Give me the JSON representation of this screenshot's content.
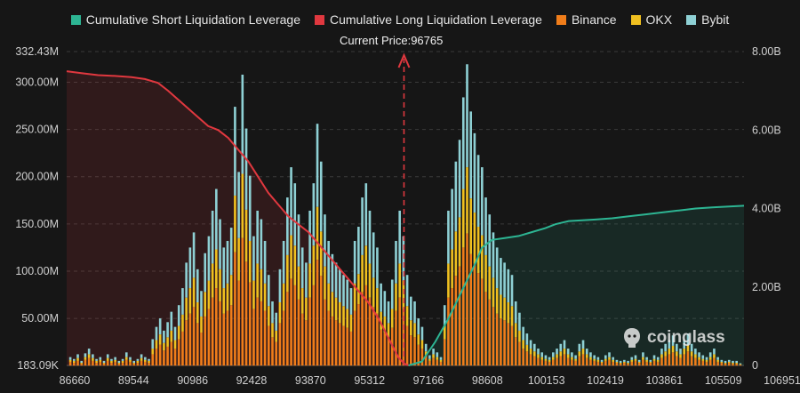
{
  "legend": {
    "short": "Cumulative Short Liquidation Leverage",
    "long": "Cumulative Long Liquidation Leverage",
    "binance": "Binance",
    "okx": "OKX",
    "bybit": "Bybit"
  },
  "current_price_label": "Current Price:96765",
  "watermark": "coinglass",
  "colors": {
    "short": "#2db593",
    "long": "#e0383f",
    "binance": "#f07d1a",
    "okx": "#f0c020",
    "bybit": "#8ed0d4",
    "background": "#161616"
  },
  "chart_data": {
    "type": "bar",
    "x_tick_labels": [
      "86660",
      "89544",
      "90986",
      "92428",
      "93870",
      "95312",
      "97166",
      "98608",
      "100153",
      "102419",
      "103861",
      "105509",
      "106951"
    ],
    "y_left_tick_labels": [
      "183.09K",
      "50.00M",
      "100.00M",
      "150.00M",
      "200.00M",
      "250.00M",
      "300.00M",
      "332.43M"
    ],
    "y_right_tick_labels": [
      "0",
      "2.00B",
      "4.00B",
      "6.00B",
      "8.00B"
    ],
    "ylim_left": [
      0.18309,
      332.43
    ],
    "ylim_right": [
      0,
      8
    ],
    "x_range": [
      86660,
      106951
    ],
    "current_price": 96765,
    "grid": "horizontal",
    "legend_position": "top",
    "series": [
      {
        "name": "Cumulative Short Liquidation Leverage",
        "type": "area-line",
        "axis": "right",
        "points": [
          [
            96900,
            0
          ],
          [
            97300,
            0.1
          ],
          [
            97700,
            0.6
          ],
          [
            98100,
            1.2
          ],
          [
            98500,
            1.9
          ],
          [
            98900,
            2.6
          ],
          [
            99100,
            3.0
          ],
          [
            99400,
            3.2
          ],
          [
            99800,
            3.25
          ],
          [
            100200,
            3.3
          ],
          [
            100600,
            3.4
          ],
          [
            101000,
            3.5
          ],
          [
            101300,
            3.6
          ],
          [
            101700,
            3.68
          ],
          [
            102100,
            3.7
          ],
          [
            102500,
            3.72
          ],
          [
            103000,
            3.75
          ],
          [
            103500,
            3.8
          ],
          [
            104000,
            3.85
          ],
          [
            104500,
            3.9
          ],
          [
            105000,
            3.95
          ],
          [
            105500,
            4.0
          ],
          [
            106000,
            4.03
          ],
          [
            106500,
            4.05
          ],
          [
            106951,
            4.07
          ]
        ]
      },
      {
        "name": "Cumulative Long Liquidation Leverage",
        "type": "area-line",
        "axis": "right",
        "points": [
          [
            86660,
            7.5
          ],
          [
            87100,
            7.45
          ],
          [
            87600,
            7.4
          ],
          [
            88100,
            7.38
          ],
          [
            88600,
            7.35
          ],
          [
            89000,
            7.3
          ],
          [
            89400,
            7.2
          ],
          [
            89700,
            7.0
          ],
          [
            90100,
            6.7
          ],
          [
            90500,
            6.4
          ],
          [
            90900,
            6.1
          ],
          [
            91200,
            6.0
          ],
          [
            91500,
            5.8
          ],
          [
            91800,
            5.5
          ],
          [
            92100,
            5.2
          ],
          [
            92400,
            4.8
          ],
          [
            92700,
            4.4
          ],
          [
            93000,
            4.1
          ],
          [
            93300,
            3.8
          ],
          [
            93600,
            3.6
          ],
          [
            93900,
            3.4
          ],
          [
            94200,
            3.1
          ],
          [
            94500,
            2.8
          ],
          [
            94800,
            2.5
          ],
          [
            95100,
            2.2
          ],
          [
            95400,
            1.9
          ],
          [
            95700,
            1.6
          ],
          [
            96000,
            1.2
          ],
          [
            96300,
            0.7
          ],
          [
            96600,
            0.2
          ],
          [
            96765,
            0.05
          ],
          [
            96900,
            0
          ]
        ]
      },
      {
        "name": "Binance",
        "type": "stacked-bar",
        "axis": "left",
        "values": [
          4,
          3,
          5,
          2,
          6,
          8,
          5,
          3,
          4,
          2,
          5,
          3,
          4,
          2,
          3,
          6,
          4,
          2,
          3,
          5,
          4,
          3,
          12,
          18,
          22,
          16,
          20,
          25,
          18,
          28,
          36,
          48,
          55,
          62,
          45,
          35,
          52,
          60,
          72,
          82,
          68,
          55,
          58,
          64,
          120,
          90,
          135,
          110,
          88,
          60,
          72,
          68,
          58,
          42,
          30,
          25,
          45,
          58,
          78,
          92,
          85,
          70,
          55,
          48,
          72,
          85,
          112,
          95,
          70,
          58,
          52,
          48,
          45,
          42,
          40,
          36,
          58,
          65,
          78,
          85,
          72,
          62,
          55,
          38,
          35,
          30,
          40,
          58,
          72,
          60,
          42,
          32,
          30,
          22,
          18,
          10,
          5,
          8,
          6,
          4,
          28,
          72,
          82,
          95,
          105,
          125,
          140,
          118,
          108,
          98,
          92,
          78,
          70,
          62,
          55,
          50,
          48,
          45,
          42,
          30,
          25,
          18,
          15,
          12,
          10,
          8,
          6,
          5,
          4,
          6,
          8,
          10,
          12,
          8,
          6,
          5,
          10,
          12,
          8,
          6,
          5,
          4,
          3,
          5,
          6,
          4,
          3,
          2,
          3,
          2,
          4,
          5,
          3,
          6,
          4,
          3,
          5,
          4,
          8,
          10,
          12,
          14,
          10,
          8,
          12,
          15,
          10,
          8,
          6,
          5,
          4,
          6,
          8,
          4,
          3,
          2,
          3,
          2,
          2,
          1
        ]
      },
      {
        "name": "OKX",
        "type": "stacked-bar",
        "axis": "left",
        "values": [
          2,
          2,
          3,
          1,
          3,
          4,
          3,
          2,
          2,
          1,
          3,
          2,
          2,
          1,
          2,
          3,
          2,
          1,
          2,
          3,
          2,
          2,
          6,
          9,
          11,
          8,
          10,
          12,
          9,
          14,
          18,
          24,
          27,
          31,
          22,
          17,
          26,
          30,
          36,
          41,
          34,
          27,
          29,
          32,
          60,
          45,
          68,
          55,
          44,
          30,
          36,
          34,
          29,
          21,
          15,
          12,
          22,
          29,
          39,
          46,
          42,
          35,
          27,
          24,
          36,
          42,
          56,
          47,
          35,
          29,
          26,
          24,
          22,
          21,
          20,
          18,
          29,
          32,
          39,
          42,
          36,
          31,
          27,
          19,
          17,
          15,
          20,
          29,
          36,
          30,
          21,
          16,
          15,
          11,
          9,
          5,
          2,
          4,
          3,
          2,
          14,
          36,
          41,
          47,
          52,
          62,
          70,
          59,
          54,
          49,
          46,
          39,
          35,
          31,
          27,
          25,
          24,
          22,
          21,
          15,
          12,
          9,
          7,
          6,
          5,
          4,
          3,
          2,
          2,
          3,
          4,
          5,
          6,
          4,
          3,
          2,
          5,
          6,
          4,
          3,
          2,
          2,
          1,
          2,
          3,
          2,
          1,
          1,
          1,
          1,
          2,
          2,
          1,
          3,
          2,
          1,
          2,
          2,
          4,
          5,
          6,
          7,
          5,
          4,
          6,
          7,
          5,
          4,
          3,
          2,
          2,
          3,
          4,
          2,
          1,
          1,
          1,
          1,
          1,
          0.5
        ]
      },
      {
        "name": "Bybit",
        "type": "stacked-bar",
        "axis": "left",
        "values": [
          3,
          2,
          4,
          2,
          4,
          6,
          4,
          2,
          3,
          2,
          4,
          2,
          3,
          2,
          2,
          5,
          3,
          2,
          2,
          4,
          3,
          2,
          10,
          14,
          17,
          13,
          16,
          20,
          14,
          22,
          28,
          37,
          43,
          48,
          35,
          27,
          41,
          47,
          56,
          64,
          53,
          43,
          45,
          50,
          94,
          70,
          105,
          86,
          69,
          47,
          56,
          53,
          45,
          33,
          23,
          19,
          35,
          45,
          61,
          72,
          66,
          55,
          43,
          37,
          56,
          66,
          88,
          74,
          55,
          45,
          40,
          37,
          35,
          33,
          31,
          28,
          45,
          50,
          61,
          66,
          56,
          48,
          43,
          30,
          27,
          23,
          31,
          45,
          56,
          47,
          33,
          25,
          23,
          17,
          14,
          8,
          4,
          6,
          5,
          3,
          22,
          56,
          64,
          74,
          82,
          97,
          109,
          92,
          84,
          76,
          72,
          61,
          55,
          48,
          43,
          39,
          37,
          35,
          33,
          23,
          19,
          14,
          12,
          9,
          8,
          6,
          5,
          4,
          3,
          5,
          6,
          8,
          9,
          6,
          5,
          4,
          8,
          9,
          6,
          5,
          4,
          3,
          2,
          4,
          5,
          3,
          2,
          2,
          2,
          2,
          3,
          4,
          2,
          5,
          3,
          2,
          4,
          3,
          6,
          8,
          9,
          11,
          8,
          6,
          9,
          12,
          8,
          6,
          5,
          4,
          3,
          5,
          6,
          3,
          2,
          2,
          2,
          2,
          2,
          1
        ]
      }
    ]
  }
}
